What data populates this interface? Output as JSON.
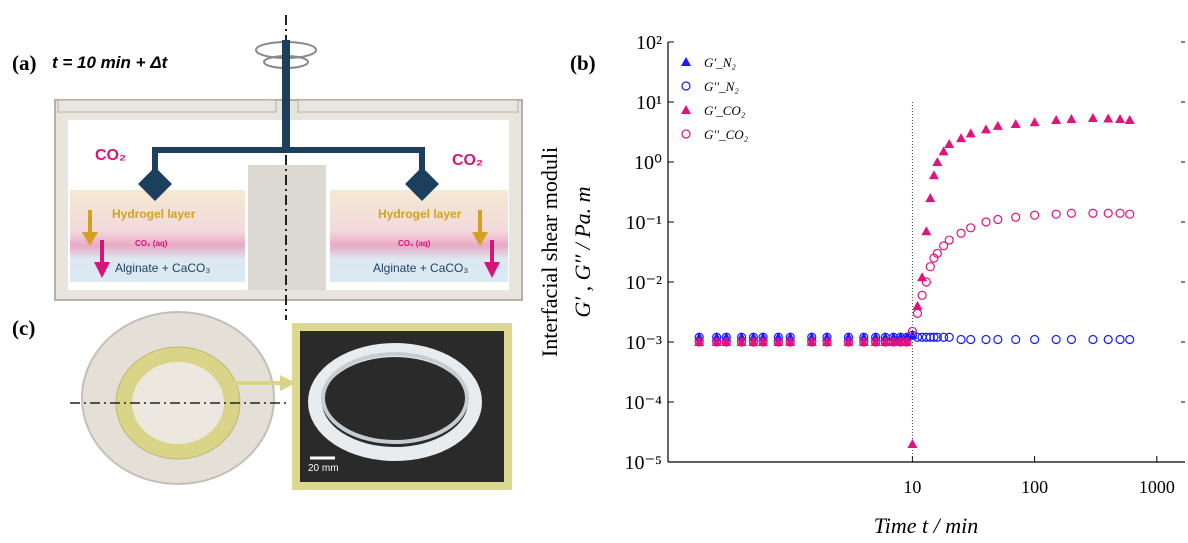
{
  "panels": {
    "a": {
      "label": "(a)",
      "time": "t = 10 min + Δt",
      "co2_left": "CO₂",
      "co2_right": "CO₂",
      "hydrogel_left": "Hydrogel layer",
      "hydrogel_right": "Hydrogel layer",
      "aq_left": "CO₂ (aq)",
      "aq_right": "CO₂ (aq)",
      "alginate_left": "Alginate + CaCO₃",
      "alginate_right": "Alginate + CaCO₃"
    },
    "c": {
      "label": "(c)",
      "scale": "20 mm"
    }
  },
  "chart_data": {
    "type": "scatter",
    "panel_label": "(b)",
    "ylabel": "Interfacial shear moduli",
    "ylabel2": "G′ , G′′ / Pa. m",
    "xlabel": "Time t / min",
    "xscale": "log",
    "yscale": "log",
    "xlim": [
      0.1,
      1700
    ],
    "ylim": [
      1e-05,
      100
    ],
    "xticks": [
      10,
      100,
      1000
    ],
    "yticks": [
      {
        "value": 100,
        "label": "10²"
      },
      {
        "value": 10,
        "label": "10¹"
      },
      {
        "value": 1,
        "label": "10⁰"
      },
      {
        "value": 0.1,
        "label": "10⁻¹"
      },
      {
        "value": 0.01,
        "label": "10⁻²"
      },
      {
        "value": 0.001,
        "label": "10⁻³"
      },
      {
        "value": 0.0001,
        "label": "10⁻⁴"
      },
      {
        "value": 1e-05,
        "label": "10⁻⁵"
      }
    ],
    "vline": 10,
    "legend": "upper left",
    "x": [
      0.18,
      0.25,
      0.3,
      0.4,
      0.5,
      0.6,
      0.8,
      1,
      1.5,
      2,
      3,
      4,
      5,
      6,
      7,
      8,
      9,
      10,
      11,
      12,
      13,
      14,
      15,
      16,
      18,
      20,
      25,
      30,
      40,
      50,
      70,
      100,
      150,
      200,
      300,
      400,
      500,
      600
    ],
    "series": [
      {
        "name": "G′_N₂",
        "color": "#1a1aff",
        "marker": "triangle",
        "values": [
          0.0012,
          0.0012,
          0.0012,
          0.0012,
          0.0012,
          0.0012,
          0.0012,
          0.0012,
          0.0012,
          0.0012,
          0.0012,
          0.0012,
          0.0012,
          0.0012,
          0.0012,
          0.0012,
          0.0012,
          0.0013,
          null,
          null,
          null,
          null,
          null,
          null,
          null,
          null,
          null,
          null,
          null,
          null,
          null,
          null,
          null,
          null,
          null,
          null,
          null,
          null
        ]
      },
      {
        "name": "G′′_N₂",
        "color": "#1a1aff",
        "marker": "circle",
        "values": [
          0.0012,
          0.0012,
          0.0012,
          0.0012,
          0.0012,
          0.0012,
          0.0012,
          0.0012,
          0.0012,
          0.0012,
          0.0012,
          0.0012,
          0.0012,
          0.0012,
          0.0012,
          0.0012,
          0.0012,
          0.0013,
          0.0012,
          0.0012,
          0.0012,
          0.0012,
          0.0012,
          0.0012,
          0.0012,
          0.0012,
          0.0011,
          0.0011,
          0.0011,
          0.0011,
          0.0011,
          0.0011,
          0.0011,
          0.0011,
          0.0011,
          0.0011,
          0.0011,
          0.0011
        ]
      },
      {
        "name": "G′_CO₂",
        "color": "#e0147e",
        "marker": "triangle",
        "values": [
          0.001,
          0.001,
          0.001,
          0.001,
          0.001,
          0.001,
          0.001,
          0.001,
          0.001,
          0.001,
          0.001,
          0.001,
          0.001,
          0.001,
          0.001,
          0.001,
          0.001,
          2e-05,
          0.004,
          0.012,
          0.07,
          0.25,
          0.6,
          1,
          1.5,
          2,
          2.5,
          3,
          3.5,
          4,
          4.3,
          4.6,
          5,
          5.2,
          5.4,
          5.3,
          5.2,
          5
        ]
      },
      {
        "name": "G′′_CO₂",
        "color": "#e0147e",
        "marker": "circle",
        "values": [
          0.001,
          0.001,
          0.001,
          0.001,
          0.001,
          0.001,
          0.001,
          0.001,
          0.001,
          0.001,
          0.001,
          0.001,
          0.001,
          0.001,
          0.001,
          0.001,
          0.001,
          0.0015,
          0.003,
          0.006,
          0.01,
          0.018,
          0.025,
          0.03,
          0.04,
          0.05,
          0.065,
          0.08,
          0.1,
          0.11,
          0.12,
          0.13,
          0.135,
          0.14,
          0.14,
          0.14,
          0.14,
          0.135
        ]
      }
    ]
  }
}
